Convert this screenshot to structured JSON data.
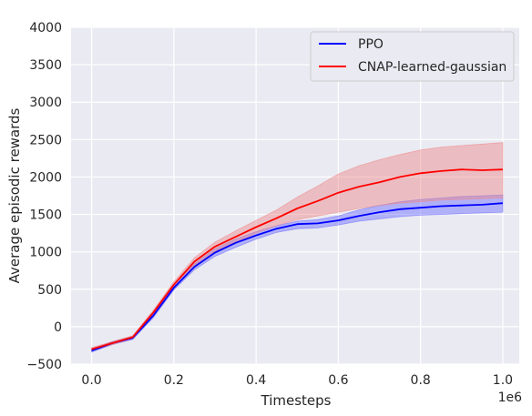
{
  "chart_data": {
    "type": "line",
    "xlabel": "Timesteps",
    "ylabel": "Average episodic rewards",
    "x_offset_label": "1e6",
    "xlim": [
      -0.05,
      1.04
    ],
    "ylim": [
      -500,
      4000
    ],
    "xticks": [
      0.0,
      0.2,
      0.4,
      0.6,
      0.8,
      1.0
    ],
    "xtick_labels": [
      "0.0",
      "0.2",
      "0.4",
      "0.6",
      "0.8",
      "1.0"
    ],
    "yticks": [
      -500,
      0,
      500,
      1000,
      1500,
      2000,
      2500,
      3000,
      3500,
      4000
    ],
    "ytick_labels": [
      "−500",
      "0",
      "500",
      "1000",
      "1500",
      "2000",
      "2500",
      "3000",
      "3500",
      "4000"
    ],
    "grid": true,
    "legend_position": "top-right",
    "x": [
      0.0,
      0.05,
      0.1,
      0.15,
      0.2,
      0.25,
      0.3,
      0.35,
      0.4,
      0.45,
      0.5,
      0.55,
      0.6,
      0.65,
      0.7,
      0.75,
      0.8,
      0.85,
      0.9,
      0.95,
      1.0
    ],
    "series": [
      {
        "name": "PPO",
        "color": "#0000ff",
        "band_color": "#6b6bff",
        "values": [
          -320,
          -220,
          -150,
          150,
          520,
          800,
          990,
          1120,
          1220,
          1310,
          1370,
          1380,
          1420,
          1480,
          1530,
          1570,
          1590,
          1610,
          1620,
          1630,
          1650
        ],
        "lower": [
          -340,
          -240,
          -170,
          120,
          490,
          760,
          940,
          1060,
          1170,
          1260,
          1310,
          1320,
          1360,
          1410,
          1440,
          1470,
          1490,
          1500,
          1510,
          1520,
          1530
        ],
        "upper": [
          -300,
          -200,
          -130,
          180,
          560,
          840,
          1040,
          1170,
          1270,
          1350,
          1410,
          1430,
          1480,
          1560,
          1620,
          1670,
          1700,
          1720,
          1740,
          1750,
          1760
        ]
      },
      {
        "name": "CNAP-learned-gaussian",
        "color": "#ff0000",
        "band_color": "#ee8888",
        "values": [
          -300,
          -220,
          -140,
          190,
          560,
          870,
          1070,
          1200,
          1330,
          1450,
          1580,
          1680,
          1790,
          1870,
          1930,
          2000,
          2050,
          2080,
          2100,
          2090,
          2100
        ],
        "lower": [
          -320,
          -240,
          -160,
          160,
          520,
          820,
          1010,
          1130,
          1250,
          1350,
          1430,
          1480,
          1530,
          1580,
          1620,
          1650,
          1670,
          1690,
          1700,
          1710,
          1720
        ],
        "upper": [
          -280,
          -200,
          -120,
          220,
          600,
          920,
          1130,
          1280,
          1420,
          1560,
          1730,
          1880,
          2040,
          2150,
          2230,
          2300,
          2360,
          2400,
          2420,
          2440,
          2460
        ]
      }
    ]
  }
}
